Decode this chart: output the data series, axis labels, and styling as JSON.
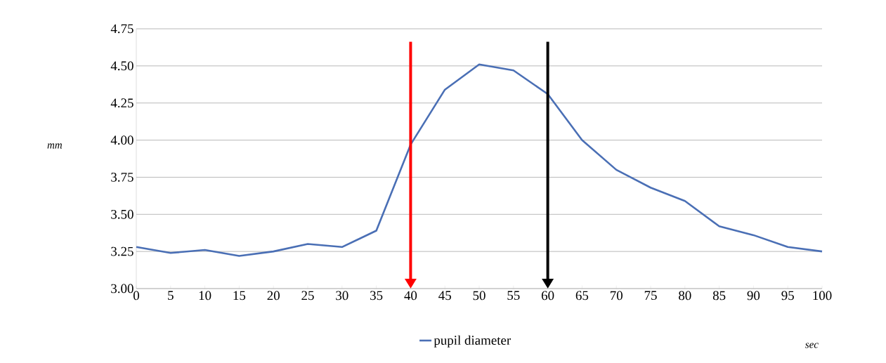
{
  "chart_data": {
    "type": "line",
    "xlabel": "sec",
    "ylabel": "mm",
    "x": [
      0,
      5,
      10,
      15,
      20,
      25,
      30,
      35,
      40,
      45,
      50,
      55,
      60,
      65,
      70,
      75,
      80,
      85,
      90,
      95,
      100
    ],
    "series": [
      {
        "name": "pupil diameter",
        "color": "#4a6fb5",
        "values": [
          3.28,
          3.24,
          3.26,
          3.22,
          3.25,
          3.3,
          3.28,
          3.39,
          3.97,
          4.34,
          4.51,
          4.47,
          4.31,
          4.0,
          3.8,
          3.68,
          3.59,
          3.42,
          3.36,
          3.28,
          3.25
        ]
      }
    ],
    "xlim": [
      0,
      100
    ],
    "xticks": [
      0,
      5,
      10,
      15,
      20,
      25,
      30,
      35,
      40,
      45,
      50,
      55,
      60,
      65,
      70,
      75,
      80,
      85,
      90,
      95,
      100
    ],
    "ylim": [
      3.0,
      4.75
    ],
    "yticks": [
      {
        "value": 3.0,
        "label": "3.00"
      },
      {
        "value": 3.25,
        "label": "3.25"
      },
      {
        "value": 3.5,
        "label": "3.50"
      },
      {
        "value": 3.75,
        "label": "3.75"
      },
      {
        "value": 4.0,
        "label": "4.00"
      },
      {
        "value": 4.25,
        "label": "4.25"
      },
      {
        "value": 4.5,
        "label": "4.50"
      },
      {
        "value": 4.75,
        "label": "4.75"
      }
    ],
    "grid": "y",
    "legend": "bottom",
    "ref_lines": [
      {
        "axis": "x",
        "value": 40,
        "color": "#ff0000"
      },
      {
        "axis": "x",
        "value": 60,
        "color": "#000000"
      }
    ]
  }
}
